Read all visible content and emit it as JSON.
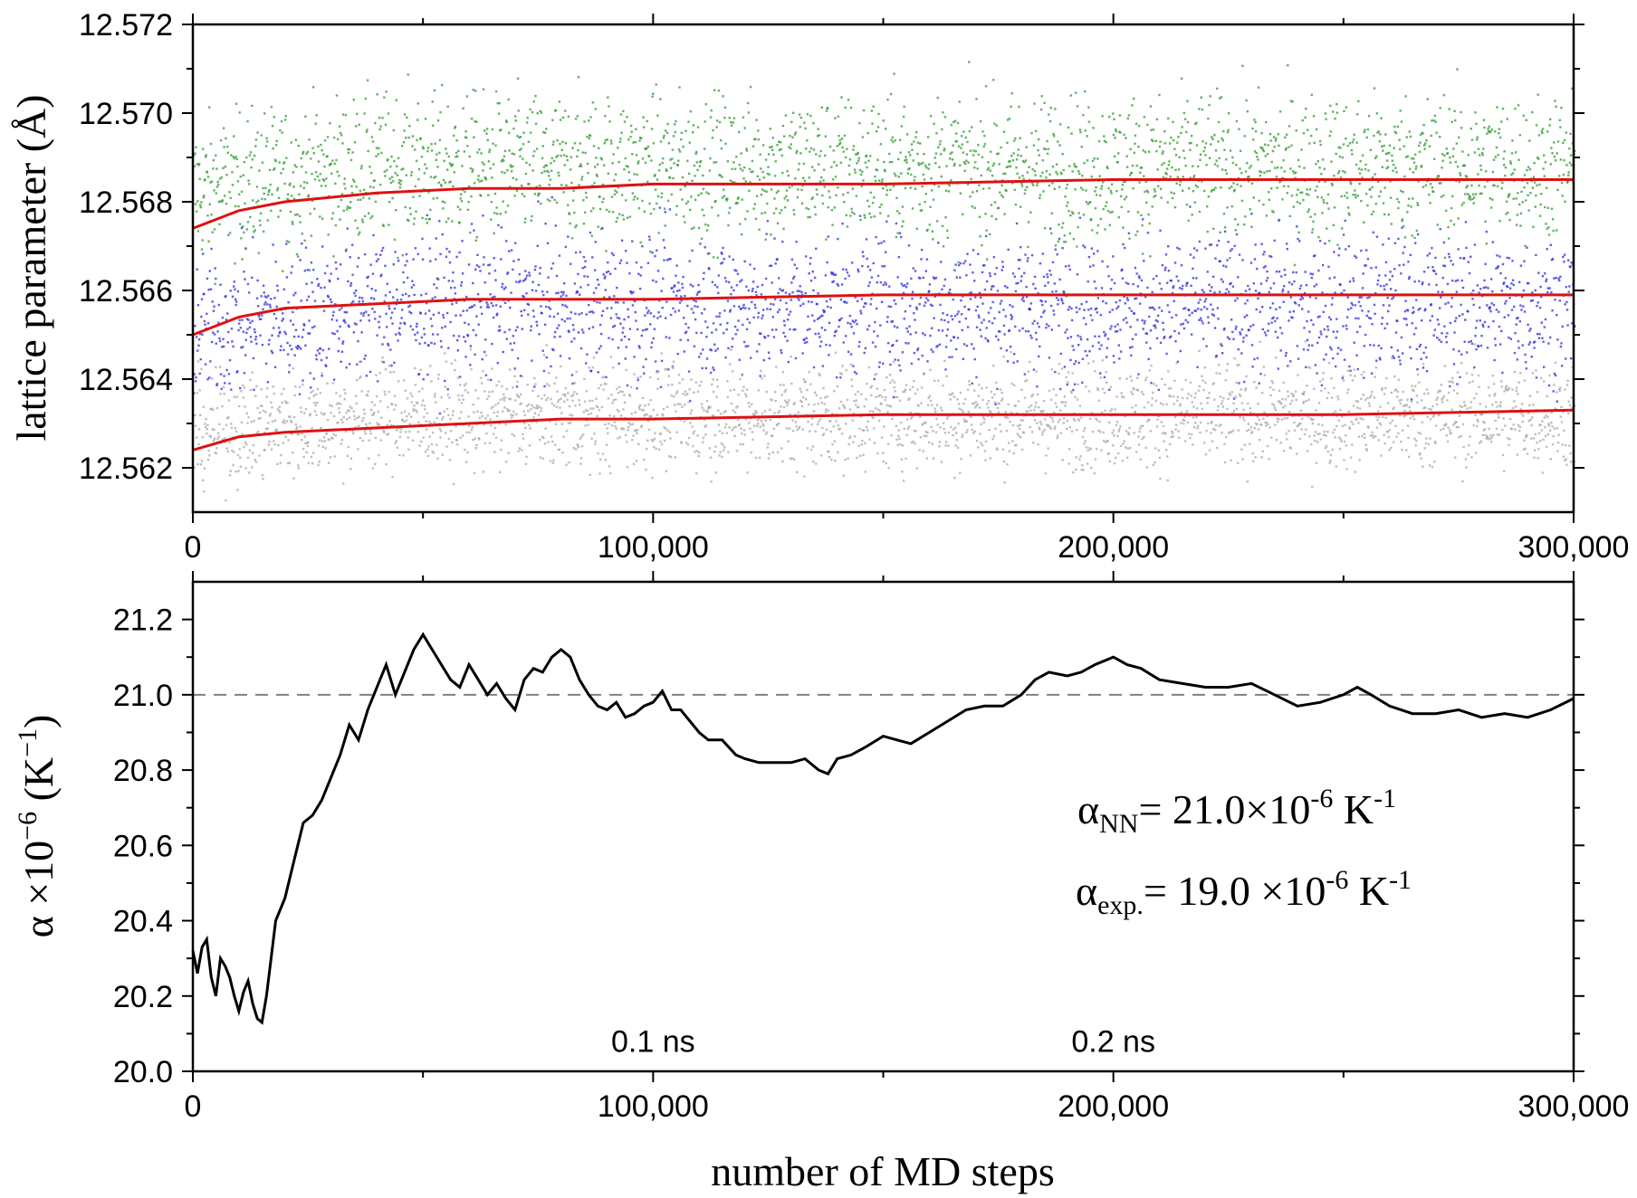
{
  "chart_data": [
    {
      "type": "scatter",
      "ylabel": "lattice parameter (Å)",
      "xlim": [
        0,
        300000
      ],
      "ylim": [
        12.561,
        12.572
      ],
      "x_ticks": [
        0,
        100000,
        200000,
        300000
      ],
      "x_tick_labels": [
        "0",
        "100,000",
        "200,000",
        "300,000"
      ],
      "y_ticks": [
        12.562,
        12.564,
        12.566,
        12.568,
        12.57,
        12.572
      ],
      "y_tick_labels": [
        "12.562",
        "12.564",
        "12.566",
        "12.568",
        "12.570",
        "12.572"
      ],
      "grid": false,
      "series": [
        {
          "color": "#2e9a2e",
          "style": "dots",
          "center": 12.5688,
          "spread": 0.0011
        },
        {
          "color": "#2b2bdc",
          "style": "dots",
          "center": 12.5657,
          "spread": 0.0011
        },
        {
          "color": "#a8a8a8",
          "style": "dots",
          "center": 12.5632,
          "spread": 0.0008
        },
        {
          "color": "#e01010",
          "style": "line",
          "x": [
            0,
            10000,
            20000,
            40000,
            60000,
            80000,
            100000,
            150000,
            200000,
            250000,
            300000
          ],
          "y": [
            12.5674,
            12.5678,
            12.568,
            12.5682,
            12.5683,
            12.5683,
            12.5684,
            12.5684,
            12.5685,
            12.5685,
            12.5685
          ]
        },
        {
          "color": "#e01010",
          "style": "line",
          "x": [
            0,
            10000,
            20000,
            40000,
            60000,
            80000,
            100000,
            150000,
            200000,
            250000,
            300000
          ],
          "y": [
            12.565,
            12.5654,
            12.5656,
            12.5657,
            12.5658,
            12.5658,
            12.5658,
            12.5659,
            12.5659,
            12.5659,
            12.5659
          ]
        },
        {
          "color": "#e01010",
          "style": "line",
          "x": [
            0,
            10000,
            20000,
            40000,
            60000,
            80000,
            100000,
            150000,
            200000,
            250000,
            300000
          ],
          "y": [
            12.5624,
            12.5627,
            12.5628,
            12.5629,
            12.563,
            12.5631,
            12.5631,
            12.5632,
            12.5632,
            12.5632,
            12.5633
          ]
        }
      ]
    },
    {
      "type": "line",
      "xlabel": "number of MD steps",
      "ylabel_prefix": "α ×10",
      "ylabel_exp": "−6",
      "ylabel_unit_open": " (K",
      "ylabel_unit_exp": "−1",
      "ylabel_unit_close": ")",
      "xlim": [
        0,
        300000
      ],
      "ylim": [
        20.0,
        21.3
      ],
      "x_ticks": [
        0,
        100000,
        200000,
        300000
      ],
      "x_tick_labels": [
        "0",
        "100,000",
        "200,000",
        "300,000"
      ],
      "y_ticks": [
        20.0,
        20.2,
        20.4,
        20.6,
        20.8,
        21.0,
        21.2
      ],
      "y_tick_labels": [
        "20.0",
        "20.2",
        "20.4",
        "20.6",
        "20.8",
        "21.0",
        "21.2"
      ],
      "grid": false,
      "reference_line": {
        "y": 21.0,
        "color": "#808080",
        "style": "dashed"
      },
      "series": [
        {
          "color": "#000000",
          "x": [
            0,
            1000,
            2000,
            3000,
            4000,
            5000,
            6000,
            7000,
            8000,
            9000,
            10000,
            11000,
            12000,
            13000,
            14000,
            15000,
            16000,
            17000,
            18000,
            20000,
            22000,
            24000,
            26000,
            28000,
            30000,
            32000,
            34000,
            36000,
            38000,
            40000,
            42000,
            44000,
            46000,
            48000,
            50000,
            52000,
            54000,
            56000,
            58000,
            60000,
            62000,
            64000,
            66000,
            68000,
            70000,
            72000,
            74000,
            76000,
            78000,
            80000,
            82000,
            84000,
            86000,
            88000,
            90000,
            92000,
            94000,
            96000,
            98000,
            100000,
            102000,
            104000,
            106000,
            108000,
            110000,
            112000,
            115000,
            118000,
            120000,
            123000,
            126000,
            130000,
            133000,
            136000,
            138000,
            140000,
            143000,
            146000,
            150000,
            153000,
            156000,
            160000,
            164000,
            168000,
            172000,
            176000,
            180000,
            183000,
            186000,
            190000,
            193000,
            196000,
            200000,
            203000,
            206000,
            210000,
            215000,
            220000,
            225000,
            230000,
            235000,
            240000,
            245000,
            250000,
            253000,
            256000,
            260000,
            265000,
            270000,
            275000,
            280000,
            285000,
            290000,
            295000,
            300000
          ],
          "y": [
            20.32,
            20.26,
            20.33,
            20.35,
            20.25,
            20.2,
            20.3,
            20.28,
            20.25,
            20.2,
            20.16,
            20.21,
            20.24,
            20.18,
            20.14,
            20.13,
            20.2,
            20.3,
            20.4,
            20.46,
            20.56,
            20.66,
            20.68,
            20.72,
            20.78,
            20.84,
            20.92,
            20.88,
            20.96,
            21.02,
            21.08,
            21.0,
            21.06,
            21.12,
            21.16,
            21.12,
            21.08,
            21.04,
            21.02,
            21.08,
            21.04,
            21.0,
            21.03,
            20.99,
            20.96,
            21.04,
            21.07,
            21.06,
            21.1,
            21.12,
            21.1,
            21.04,
            21.0,
            20.97,
            20.96,
            20.98,
            20.94,
            20.95,
            20.97,
            20.98,
            21.01,
            20.96,
            20.96,
            20.93,
            20.9,
            20.88,
            20.88,
            20.84,
            20.83,
            20.82,
            20.82,
            20.82,
            20.83,
            20.8,
            20.79,
            20.83,
            20.84,
            20.86,
            20.89,
            20.88,
            20.87,
            20.9,
            20.93,
            20.96,
            20.97,
            20.97,
            21.0,
            21.04,
            21.06,
            21.05,
            21.06,
            21.08,
            21.1,
            21.08,
            21.07,
            21.04,
            21.03,
            21.02,
            21.02,
            21.03,
            21.0,
            20.97,
            20.98,
            21.0,
            21.02,
            21.0,
            20.97,
            20.95,
            20.95,
            20.96,
            20.94,
            20.95,
            20.94,
            20.96,
            20.99
          ]
        }
      ],
      "annotations": [
        {
          "text": "0.1 ns",
          "x": 100000,
          "y": 20.08
        },
        {
          "text": "0.2 ns",
          "x": 200000,
          "y": 20.08
        }
      ],
      "legend_text": [
        {
          "symbol": "α",
          "sub": "NN",
          "value": "=  21.0×10",
          "exp": "-6",
          "unit": " K",
          "unit_exp": "-1"
        },
        {
          "symbol": "α",
          "sub": "exp.",
          "value": "= 19.0 ×10",
          "exp": "-6",
          "unit": " K",
          "unit_exp": "-1"
        }
      ]
    }
  ]
}
